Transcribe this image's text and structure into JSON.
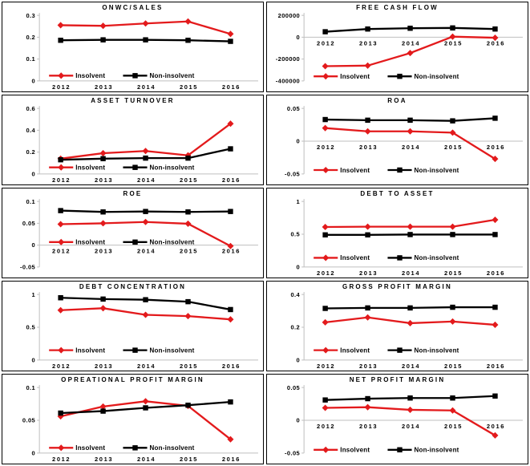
{
  "figure": {
    "background": "#ffffff",
    "panel_border_color": "#000000",
    "axis_color": "#bfbfbf",
    "text_color": "#000000"
  },
  "legend": {
    "insolvent_label": "Insolvent",
    "non_insolvent_label": "Non-insolvent"
  },
  "colors": {
    "insolvent": "#e31a1c",
    "non_insolvent": "#000000"
  },
  "years": [
    "2012",
    "2013",
    "2014",
    "2015",
    "2016"
  ],
  "chart_data": [
    {
      "type": "line",
      "title": "ONWC/SALES",
      "categories": [
        "2012",
        "2013",
        "2014",
        "2015",
        "2016"
      ],
      "ylim": [
        0,
        0.3
      ],
      "yticks": {
        "values": [
          0,
          0.1,
          0.2,
          0.3
        ],
        "labels": [
          "0",
          "0.1",
          "0.2",
          "0.3"
        ]
      },
      "grid": "zero-line-only",
      "legend_position": "inside-bottom-left",
      "legend_y_frac": 0.92,
      "series": [
        {
          "name": "Insolvent",
          "color": "#e31a1c",
          "marker": "diamond",
          "values": [
            0.255,
            0.252,
            0.263,
            0.272,
            0.215
          ]
        },
        {
          "name": "Non-insolvent",
          "color": "#000000",
          "marker": "square",
          "values": [
            0.186,
            0.188,
            0.188,
            0.186,
            0.181
          ]
        }
      ]
    },
    {
      "type": "line",
      "title": "FREE CASH FLOW",
      "categories": [
        "2012",
        "2013",
        "2014",
        "2015",
        "2016"
      ],
      "ylim": [
        -400000,
        200000
      ],
      "yticks": {
        "values": [
          -400000,
          -200000,
          0,
          200000
        ],
        "labels": [
          "-400000",
          "-200000",
          "0",
          "200000"
        ]
      },
      "grid": "zero-line-only",
      "legend_position": "inside-bottom-left",
      "legend_y_frac": 0.93,
      "series": [
        {
          "name": "Insolvent",
          "color": "#e31a1c",
          "marker": "diamond",
          "values": [
            -265000,
            -260000,
            -145000,
            5000,
            -5000
          ]
        },
        {
          "name": "Non-insolvent",
          "color": "#000000",
          "marker": "square",
          "values": [
            50000,
            75000,
            82000,
            85000,
            75000
          ]
        }
      ]
    },
    {
      "type": "line",
      "title": "ASSET TURNOVER",
      "categories": [
        "2012",
        "2013",
        "2014",
        "2015",
        "2016"
      ],
      "ylim": [
        0,
        0.6
      ],
      "yticks": {
        "values": [
          0,
          0.2,
          0.4,
          0.6
        ],
        "labels": [
          "0",
          "0.2",
          "0.4",
          "0.6"
        ]
      },
      "grid": "zero-line-only",
      "legend_position": "inside-bottom-left",
      "legend_y_frac": 0.9,
      "series": [
        {
          "name": "Insolvent",
          "color": "#e31a1c",
          "marker": "diamond",
          "values": [
            0.14,
            0.19,
            0.21,
            0.17,
            0.46
          ]
        },
        {
          "name": "Non-insolvent",
          "color": "#000000",
          "marker": "square",
          "values": [
            0.13,
            0.14,
            0.145,
            0.145,
            0.23
          ]
        }
      ]
    },
    {
      "type": "line",
      "title": "ROA",
      "categories": [
        "2012",
        "2013",
        "2014",
        "2015",
        "2016"
      ],
      "ylim": [
        -0.05,
        0.05
      ],
      "yticks": {
        "values": [
          -0.05,
          0,
          0.05
        ],
        "labels": [
          "-0.05",
          "0",
          "0.05"
        ]
      },
      "grid": "zero-line-only",
      "legend_position": "inside-bottom-left",
      "legend_y_frac": 0.94,
      "series": [
        {
          "name": "Insolvent",
          "color": "#e31a1c",
          "marker": "diamond",
          "values": [
            0.02,
            0.015,
            0.015,
            0.013,
            -0.027
          ]
        },
        {
          "name": "Non-insolvent",
          "color": "#000000",
          "marker": "square",
          "values": [
            0.033,
            0.032,
            0.032,
            0.031,
            0.035
          ]
        }
      ]
    },
    {
      "type": "line",
      "title": "ROE",
      "categories": [
        "2012",
        "2013",
        "2014",
        "2015",
        "2016"
      ],
      "ylim": [
        -0.05,
        0.1
      ],
      "yticks": {
        "values": [
          -0.05,
          0,
          0.05,
          0.1
        ],
        "labels": [
          "-0.05",
          "0",
          "0.05",
          "0.1"
        ]
      },
      "grid": "zero-line-only",
      "legend_position": "inside-middle-left",
      "legend_y_frac": 0.62,
      "series": [
        {
          "name": "Insolvent",
          "color": "#e31a1c",
          "marker": "diamond",
          "values": [
            0.048,
            0.05,
            0.053,
            0.049,
            -0.002
          ]
        },
        {
          "name": "Non-insolvent",
          "color": "#000000",
          "marker": "square",
          "values": [
            0.079,
            0.076,
            0.077,
            0.076,
            0.077
          ]
        }
      ]
    },
    {
      "type": "line",
      "title": "DEBT TO ASSET",
      "categories": [
        "2012",
        "2013",
        "2014",
        "2015",
        "2016"
      ],
      "ylim": [
        0,
        1
      ],
      "yticks": {
        "values": [
          0,
          0.5,
          1
        ],
        "labels": [
          "0",
          "0.5",
          "1"
        ]
      },
      "grid": "zero-line-only",
      "legend_position": "inside-bottom-left",
      "legend_y_frac": 0.86,
      "series": [
        {
          "name": "Insolvent",
          "color": "#e31a1c",
          "marker": "diamond",
          "values": [
            0.61,
            0.615,
            0.615,
            0.615,
            0.72
          ]
        },
        {
          "name": "Non-insolvent",
          "color": "#000000",
          "marker": "square",
          "values": [
            0.49,
            0.49,
            0.495,
            0.495,
            0.495
          ]
        }
      ]
    },
    {
      "type": "line",
      "title": "DEBT CONCENTRATION",
      "categories": [
        "2012",
        "2013",
        "2014",
        "2015",
        "2016"
      ],
      "ylim": [
        0,
        1
      ],
      "yticks": {
        "values": [
          0,
          0.5,
          1
        ],
        "labels": [
          "0",
          "0.5",
          "1"
        ]
      },
      "grid": "zero-line-only",
      "legend_position": "inside-bottom-left",
      "legend_y_frac": 0.85,
      "series": [
        {
          "name": "Insolvent",
          "color": "#e31a1c",
          "marker": "diamond",
          "values": [
            0.76,
            0.79,
            0.69,
            0.67,
            0.62
          ]
        },
        {
          "name": "Non-insolvent",
          "color": "#000000",
          "marker": "square",
          "values": [
            0.95,
            0.93,
            0.92,
            0.89,
            0.77
          ]
        }
      ]
    },
    {
      "type": "line",
      "title": "GROSS PROFIT MARGIN",
      "categories": [
        "2012",
        "2013",
        "2014",
        "2015",
        "2016"
      ],
      "ylim": [
        0,
        0.4
      ],
      "yticks": {
        "values": [
          0,
          0.2,
          0.4
        ],
        "labels": [
          "0",
          "0.2",
          "0.4"
        ]
      },
      "grid": "zero-line-only",
      "legend_position": "inside-bottom-left",
      "legend_y_frac": 0.85,
      "series": [
        {
          "name": "Insolvent",
          "color": "#e31a1c",
          "marker": "diamond",
          "values": [
            0.23,
            0.26,
            0.225,
            0.235,
            0.215
          ]
        },
        {
          "name": "Non-insolvent",
          "color": "#000000",
          "marker": "square",
          "values": [
            0.315,
            0.318,
            0.318,
            0.322,
            0.322
          ]
        }
      ]
    },
    {
      "type": "line",
      "title": "OPREATIONAL PROFIT MARGIN",
      "categories": [
        "2012",
        "2013",
        "2014",
        "2015",
        "2016"
      ],
      "ylim": [
        0,
        0.1
      ],
      "yticks": {
        "values": [
          0,
          0.05,
          0.1
        ],
        "labels": [
          "0",
          "0.05",
          "0.1"
        ]
      },
      "grid": "zero-line-only",
      "legend_position": "inside-bottom-left",
      "legend_y_frac": 0.92,
      "series": [
        {
          "name": "Insolvent",
          "color": "#e31a1c",
          "marker": "diamond",
          "values": [
            0.056,
            0.071,
            0.079,
            0.072,
            0.021
          ]
        },
        {
          "name": "Non-insolvent",
          "color": "#000000",
          "marker": "square",
          "values": [
            0.061,
            0.064,
            0.069,
            0.073,
            0.078
          ]
        }
      ]
    },
    {
      "type": "line",
      "title": "NET PROFIT MARGIN",
      "categories": [
        "2012",
        "2013",
        "2014",
        "2015",
        "2016"
      ],
      "ylim": [
        -0.05,
        0.05
      ],
      "yticks": {
        "values": [
          -0.05,
          0,
          0.05
        ],
        "labels": [
          "-0.05",
          "0",
          "0.05"
        ]
      },
      "grid": "zero-line-only",
      "legend_position": "inside-bottom-left",
      "legend_y_frac": 0.95,
      "series": [
        {
          "name": "Insolvent",
          "color": "#e31a1c",
          "marker": "diamond",
          "values": [
            0.019,
            0.02,
            0.016,
            0.015,
            -0.023
          ]
        },
        {
          "name": "Non-insolvent",
          "color": "#000000",
          "marker": "square",
          "values": [
            0.031,
            0.033,
            0.034,
            0.034,
            0.037
          ]
        }
      ]
    }
  ]
}
